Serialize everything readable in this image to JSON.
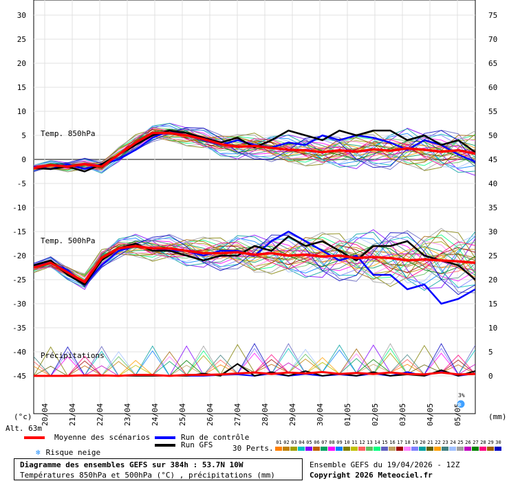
{
  "chart_data": {
    "type": "line",
    "left_axis": {
      "unit": "(°c)",
      "min": -50,
      "max": 30,
      "ticks": [
        30,
        25,
        20,
        15,
        10,
        5,
        0,
        -5,
        -10,
        -15,
        -20,
        -25,
        -30,
        -35,
        -40,
        -45
      ]
    },
    "right_axis": {
      "unit": "(mm)",
      "min": 0,
      "max": 75,
      "ticks": [
        75,
        70,
        65,
        60,
        55,
        50,
        45,
        40,
        35,
        30,
        25,
        20,
        15,
        10,
        5,
        0
      ]
    },
    "x_days": [
      "20/04",
      "21/04",
      "22/04",
      "23/04",
      "24/04",
      "25/04",
      "26/04",
      "27/04",
      "28/04",
      "29/04",
      "30/04",
      "01/05",
      "02/05",
      "03/05",
      "04/05",
      "05/05"
    ],
    "panel_labels": {
      "t850": "Temp. 850hPa",
      "t500": "Temp. 500hPa",
      "precip": "Précipitations"
    },
    "altitude": "Alt. 63m",
    "series": [
      {
        "name": "Moyenne des scénarios",
        "color": "#ff0000",
        "t850": [
          -1.8,
          -1.2,
          -1.5,
          -1.0,
          -1.5,
          1.0,
          3.5,
          5.5,
          5.5,
          5.0,
          4.2,
          3.2,
          2.6,
          2.8,
          2.4,
          2.0,
          1.9,
          1.5,
          1.9,
          1.6,
          2.1,
          1.8,
          2.3,
          2.0,
          1.6,
          1.9,
          1.2
        ],
        "t500": [
          -22.5,
          -21.5,
          -23.5,
          -25.5,
          -20.5,
          -18.5,
          -18.0,
          -18.5,
          -18.5,
          -19.0,
          -19.5,
          -19.5,
          -19.3,
          -19.8,
          -19.5,
          -20.0,
          -19.8,
          -20.2,
          -20.0,
          -20.5,
          -20.3,
          -20.5,
          -21.0,
          -20.8,
          -21.0,
          -21.2,
          -21.5
        ],
        "precip": [
          0,
          0,
          0,
          0.1,
          0.1,
          0,
          0.2,
          0.2,
          0,
          0.2,
          0.2,
          0.3,
          0.5,
          0.7,
          0.4,
          0.7,
          0.5,
          0.8,
          0.4,
          0.6,
          0.4,
          0.7,
          0.4,
          0.3,
          0.7,
          0.3,
          0.4
        ]
      },
      {
        "name": "Run de contrôle",
        "color": "#0000ff",
        "t850": [
          -1.5,
          -2,
          -1,
          -2,
          -1,
          0,
          2,
          4.5,
          6,
          5,
          4,
          3,
          4,
          3,
          2.5,
          3.5,
          3,
          5,
          4,
          5,
          4.5,
          3.5,
          2,
          4,
          3,
          1,
          -0.5
        ],
        "t500": [
          -22,
          -21.5,
          -23,
          -26,
          -22,
          -19,
          -18,
          -18.5,
          -19,
          -19,
          -20,
          -19,
          -19,
          -20,
          -17,
          -15,
          -17,
          -19,
          -21,
          -20,
          -24,
          -24,
          -27,
          -26,
          -30,
          -29,
          -27
        ],
        "precip": [
          0,
          0,
          0,
          0,
          0,
          0,
          0,
          0,
          0,
          0,
          0,
          0.2,
          0.3,
          0,
          0.5,
          0,
          0.4,
          0,
          0.3,
          0,
          0.5,
          0,
          0.8,
          0,
          1.0,
          0,
          0.5
        ]
      },
      {
        "name": "Run GFS",
        "color": "#000000",
        "t850": [
          -1.8,
          -2,
          -1.5,
          -2.5,
          -1,
          1,
          3,
          5,
          6,
          5.5,
          4.5,
          3.5,
          4.5,
          2.5,
          4,
          6,
          5,
          4,
          6,
          5,
          6,
          6,
          4,
          5,
          3,
          4,
          1.5
        ],
        "t500": [
          -22,
          -21,
          -24,
          -26,
          -21,
          -18.5,
          -17.5,
          -19,
          -19,
          -20,
          -21,
          -20,
          -20,
          -18,
          -19,
          -16,
          -18,
          -17,
          -19,
          -21,
          -18,
          -18,
          -17,
          -20,
          -21,
          -22,
          -25
        ],
        "precip": [
          0,
          0,
          0,
          0,
          0,
          0,
          0,
          0,
          0,
          0,
          0.5,
          0,
          2.5,
          0,
          0.8,
          0,
          1.0,
          0,
          0.5,
          0,
          0.8,
          0,
          0.3,
          0,
          1.2,
          0,
          1.0
        ]
      }
    ],
    "snow_risk": {
      "label": "3%",
      "day_index": 15.8
    }
  },
  "legend": {
    "mean": "Moyenne des scénarios",
    "control": "Run de contrôle",
    "gfs": "Run GFS",
    "snow": "Risque neige",
    "perts_label": "30 Perts.",
    "perts": [
      "01",
      "02",
      "03",
      "04",
      "05",
      "06",
      "07",
      "08",
      "09",
      "10",
      "11",
      "12",
      "13",
      "14",
      "15",
      "16",
      "17",
      "18",
      "19",
      "20",
      "21",
      "22",
      "23",
      "24",
      "25",
      "26",
      "27",
      "28",
      "29",
      "30"
    ],
    "pert_colors": [
      "#ff8000",
      "#c08000",
      "#a0a000",
      "#00c0c0",
      "#8000ff",
      "#c06000",
      "#00a060",
      "#ff00ff",
      "#0080ff",
      "#808000",
      "#c0c000",
      "#ff6060",
      "#60c060",
      "#00ff80",
      "#6060c0",
      "#c0a060",
      "#a00000",
      "#ff80ff",
      "#8080ff",
      "#00a0a0",
      "#606000",
      "#ffa000",
      "#408080",
      "#a0c0ff",
      "#a0a0a0",
      "#c000c0",
      "#008000",
      "#ff0080",
      "#a06000",
      "#0000c0"
    ]
  },
  "footer": {
    "title": "Diagramme des ensembles GEFS sur 384h : 53.7N 10W",
    "subtitle": "Températures 850hPa et 500hPa (°C) , précipitations (mm)",
    "run_info": "Ensemble GEFS du 19/04/2026 - 12Z",
    "copyright": "Copyright 2026 Meteociel.fr"
  }
}
